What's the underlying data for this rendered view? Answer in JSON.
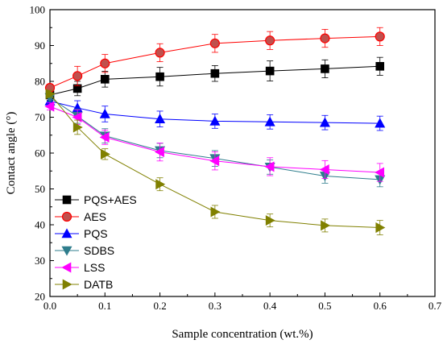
{
  "chart_data": {
    "type": "line",
    "xlabel": "Sample concentration (wt.%)",
    "ylabel": "Contact angle (°)",
    "xlim": [
      0.0,
      0.7
    ],
    "ylim": [
      20,
      100
    ],
    "xticks": [
      "0.0",
      "0.1",
      "0.2",
      "0.3",
      "0.4",
      "0.5",
      "0.6",
      "0.7"
    ],
    "yticks": [
      "20",
      "30",
      "40",
      "50",
      "60",
      "70",
      "80",
      "90",
      "100"
    ],
    "grid": false,
    "legend_position": "bottom-left",
    "x": [
      0.0,
      0.05,
      0.1,
      0.2,
      0.3,
      0.4,
      0.5,
      0.6
    ],
    "series": [
      {
        "name": "PQS+AES",
        "color": "#000000",
        "marker": "square",
        "values": [
          76.2,
          78.0,
          80.6,
          81.3,
          82.2,
          82.9,
          83.5,
          84.2
        ],
        "errors": [
          1.5,
          2.0,
          2.2,
          2.6,
          2.2,
          2.8,
          2.5,
          2.5
        ]
      },
      {
        "name": "AES",
        "color": "#ff0000",
        "marker": "circle",
        "values": [
          78.2,
          81.5,
          85.0,
          88.0,
          90.6,
          91.4,
          92.0,
          92.5
        ],
        "errors": [
          1.0,
          2.7,
          2.5,
          2.5,
          2.5,
          2.5,
          2.5,
          2.5
        ]
      },
      {
        "name": "PQS",
        "color": "#0000ff",
        "marker": "triangle-up",
        "values": [
          74.5,
          72.6,
          70.9,
          69.5,
          68.9,
          68.7,
          68.5,
          68.3
        ],
        "errors": [
          1.0,
          2.0,
          2.2,
          2.2,
          2.0,
          2.0,
          2.0,
          2.0
        ]
      },
      {
        "name": "SDBS",
        "color": "#2e7d8c",
        "marker": "triangle-down",
        "values": [
          75.5,
          70.3,
          64.8,
          60.7,
          58.5,
          56.1,
          53.6,
          52.6
        ],
        "errors": [
          1.0,
          2.0,
          2.0,
          2.0,
          2.2,
          2.0,
          2.0,
          2.0
        ]
      },
      {
        "name": "LSS",
        "color": "#ff00ff",
        "marker": "triangle-left",
        "values": [
          73.0,
          70.0,
          64.4,
          60.3,
          57.8,
          56.2,
          55.4,
          54.6
        ],
        "errors": [
          1.0,
          2.0,
          2.0,
          2.5,
          2.5,
          2.5,
          2.5,
          2.5
        ]
      },
      {
        "name": "DATB",
        "color": "#808000",
        "marker": "triangle-right",
        "values": [
          76.5,
          67.2,
          59.7,
          51.3,
          43.6,
          41.2,
          39.8,
          39.2
        ],
        "errors": [
          1.0,
          2.0,
          1.5,
          1.8,
          1.8,
          1.8,
          1.8,
          2.0
        ]
      }
    ]
  }
}
